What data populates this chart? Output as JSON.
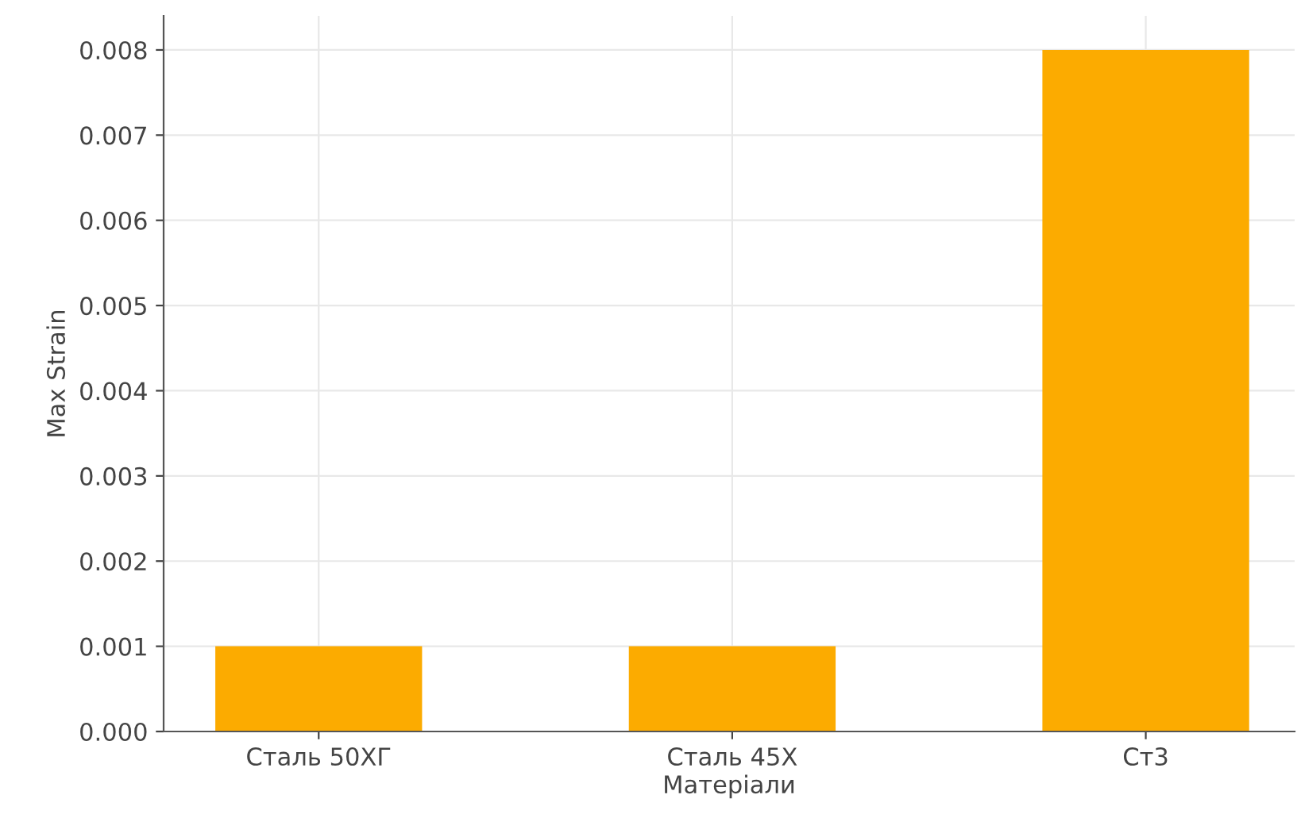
{
  "chart_data": {
    "type": "bar",
    "xlabel": "Матеріали",
    "ylabel": "Max Strain",
    "categories": [
      "Сталь 50ХГ",
      "Сталь 45Х",
      "Ст3"
    ],
    "values": [
      0.001,
      0.001,
      0.008
    ],
    "color": "#fcab00",
    "ylim": [
      0,
      0.0084
    ],
    "yticks": [
      {
        "value": 0,
        "label": "0.000"
      },
      0.001,
      0.002,
      0.003,
      0.004,
      0.005,
      0.006,
      0.007,
      0.008
    ],
    "grid": true
  }
}
